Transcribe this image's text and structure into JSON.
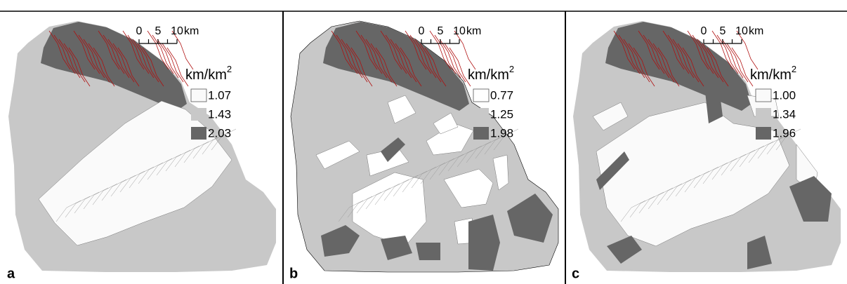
{
  "panels": [
    {
      "label": "a",
      "scale": {
        "ticks": [
          "0",
          "5",
          "10"
        ],
        "unit": "km"
      },
      "legend": {
        "title": "km/km",
        "title_sup": "2",
        "entries": [
          {
            "label": "1.07",
            "color": "#fafafa"
          },
          {
            "label": "1.43",
            "color": "#c8c8c8"
          },
          {
            "label": "2.03",
            "color": "#666666"
          }
        ]
      }
    },
    {
      "label": "b",
      "scale": {
        "ticks": [
          "0",
          "5",
          "10"
        ],
        "unit": "km"
      },
      "legend": {
        "title": "km/km",
        "title_sup": "2",
        "entries": [
          {
            "label": "0.77",
            "color": "#ffffff"
          },
          {
            "label": "1.25",
            "color": "#c8c8c8"
          },
          {
            "label": "1.98",
            "color": "#666666"
          }
        ]
      }
    },
    {
      "label": "c",
      "scale": {
        "ticks": [
          "0",
          "5",
          "10"
        ],
        "unit": "km"
      },
      "legend": {
        "title": "km/km",
        "title_sup": "2",
        "entries": [
          {
            "label": "1.00",
            "color": "#fafafa"
          },
          {
            "label": "1.34",
            "color": "#c8c8c8"
          },
          {
            "label": "1.96",
            "color": "#666666"
          }
        ]
      }
    }
  ]
}
